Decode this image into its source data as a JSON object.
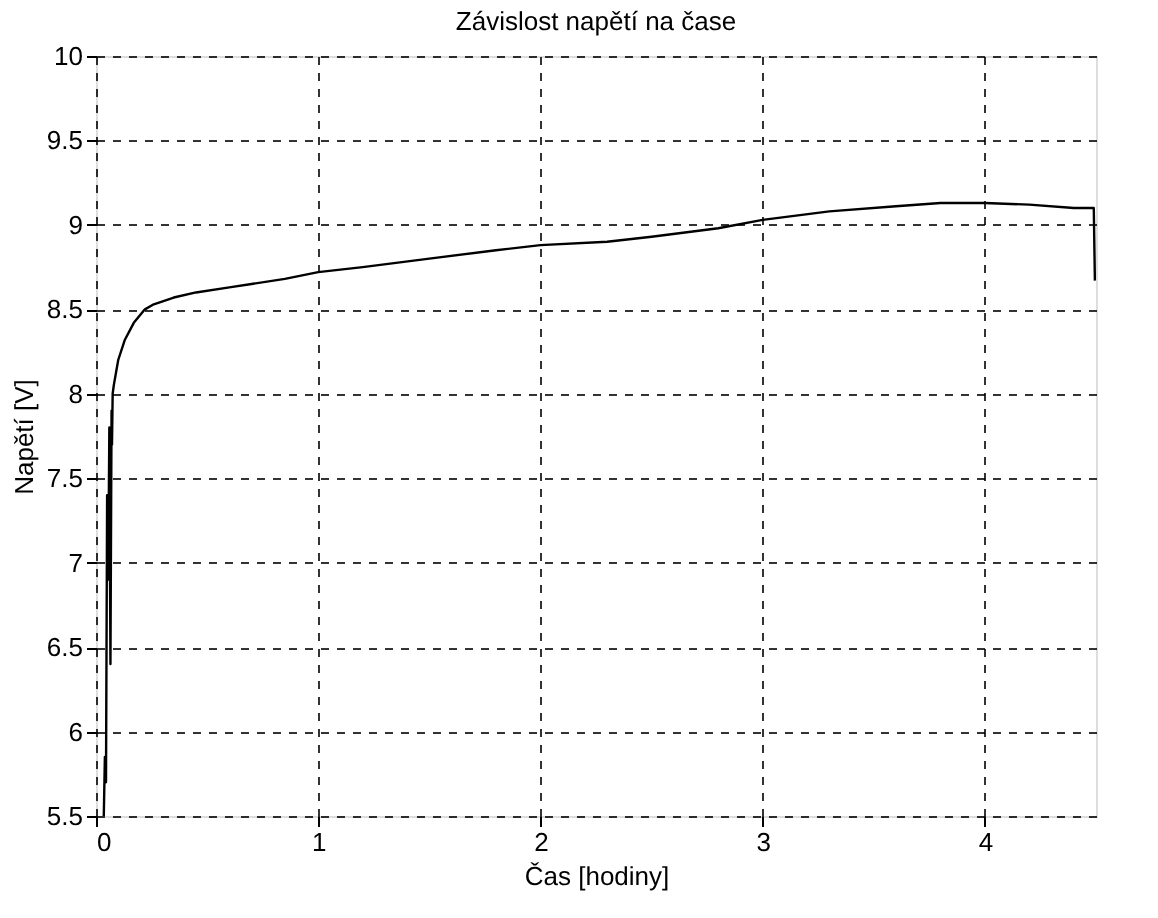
{
  "chart_data": {
    "type": "line",
    "title": "Závislost napětí na čase",
    "xlabel": "Čas [hodiny]",
    "ylabel": "Napětí [V]",
    "xlim": [
      0,
      4.5
    ],
    "xticks": [
      0,
      1,
      2,
      3,
      4
    ],
    "ylim": [
      5.5,
      10
    ],
    "yticks": [
      5.5,
      6,
      6.5,
      7,
      7.5,
      8,
      8.5,
      9,
      9.5,
      10
    ],
    "grid": true,
    "line_style": "solid",
    "marker": "none",
    "series": [
      {
        "color": "#000000",
        "x": [
          0.035,
          0.04,
          0.045,
          0.05,
          0.055,
          0.06,
          0.065,
          0.07,
          0.072,
          0.075,
          0.08,
          0.1,
          0.13,
          0.17,
          0.22,
          0.26,
          0.35,
          0.45,
          0.6,
          0.7,
          0.85,
          1.0,
          1.2,
          1.5,
          1.8,
          2.0,
          2.3,
          2.5,
          2.8,
          3.0,
          3.3,
          3.6,
          3.8,
          4.0,
          4.2,
          4.4,
          4.49,
          4.495
        ],
        "values": [
          5.5,
          5.85,
          5.7,
          7.4,
          6.9,
          7.8,
          6.4,
          7.9,
          7.7,
          8.0,
          8.05,
          8.2,
          8.32,
          8.42,
          8.5,
          8.53,
          8.57,
          8.6,
          8.63,
          8.65,
          8.68,
          8.72,
          8.75,
          8.8,
          8.85,
          8.88,
          8.9,
          8.93,
          8.98,
          9.03,
          9.08,
          9.11,
          9.13,
          9.13,
          9.12,
          9.1,
          9.1,
          8.67
        ]
      }
    ]
  }
}
